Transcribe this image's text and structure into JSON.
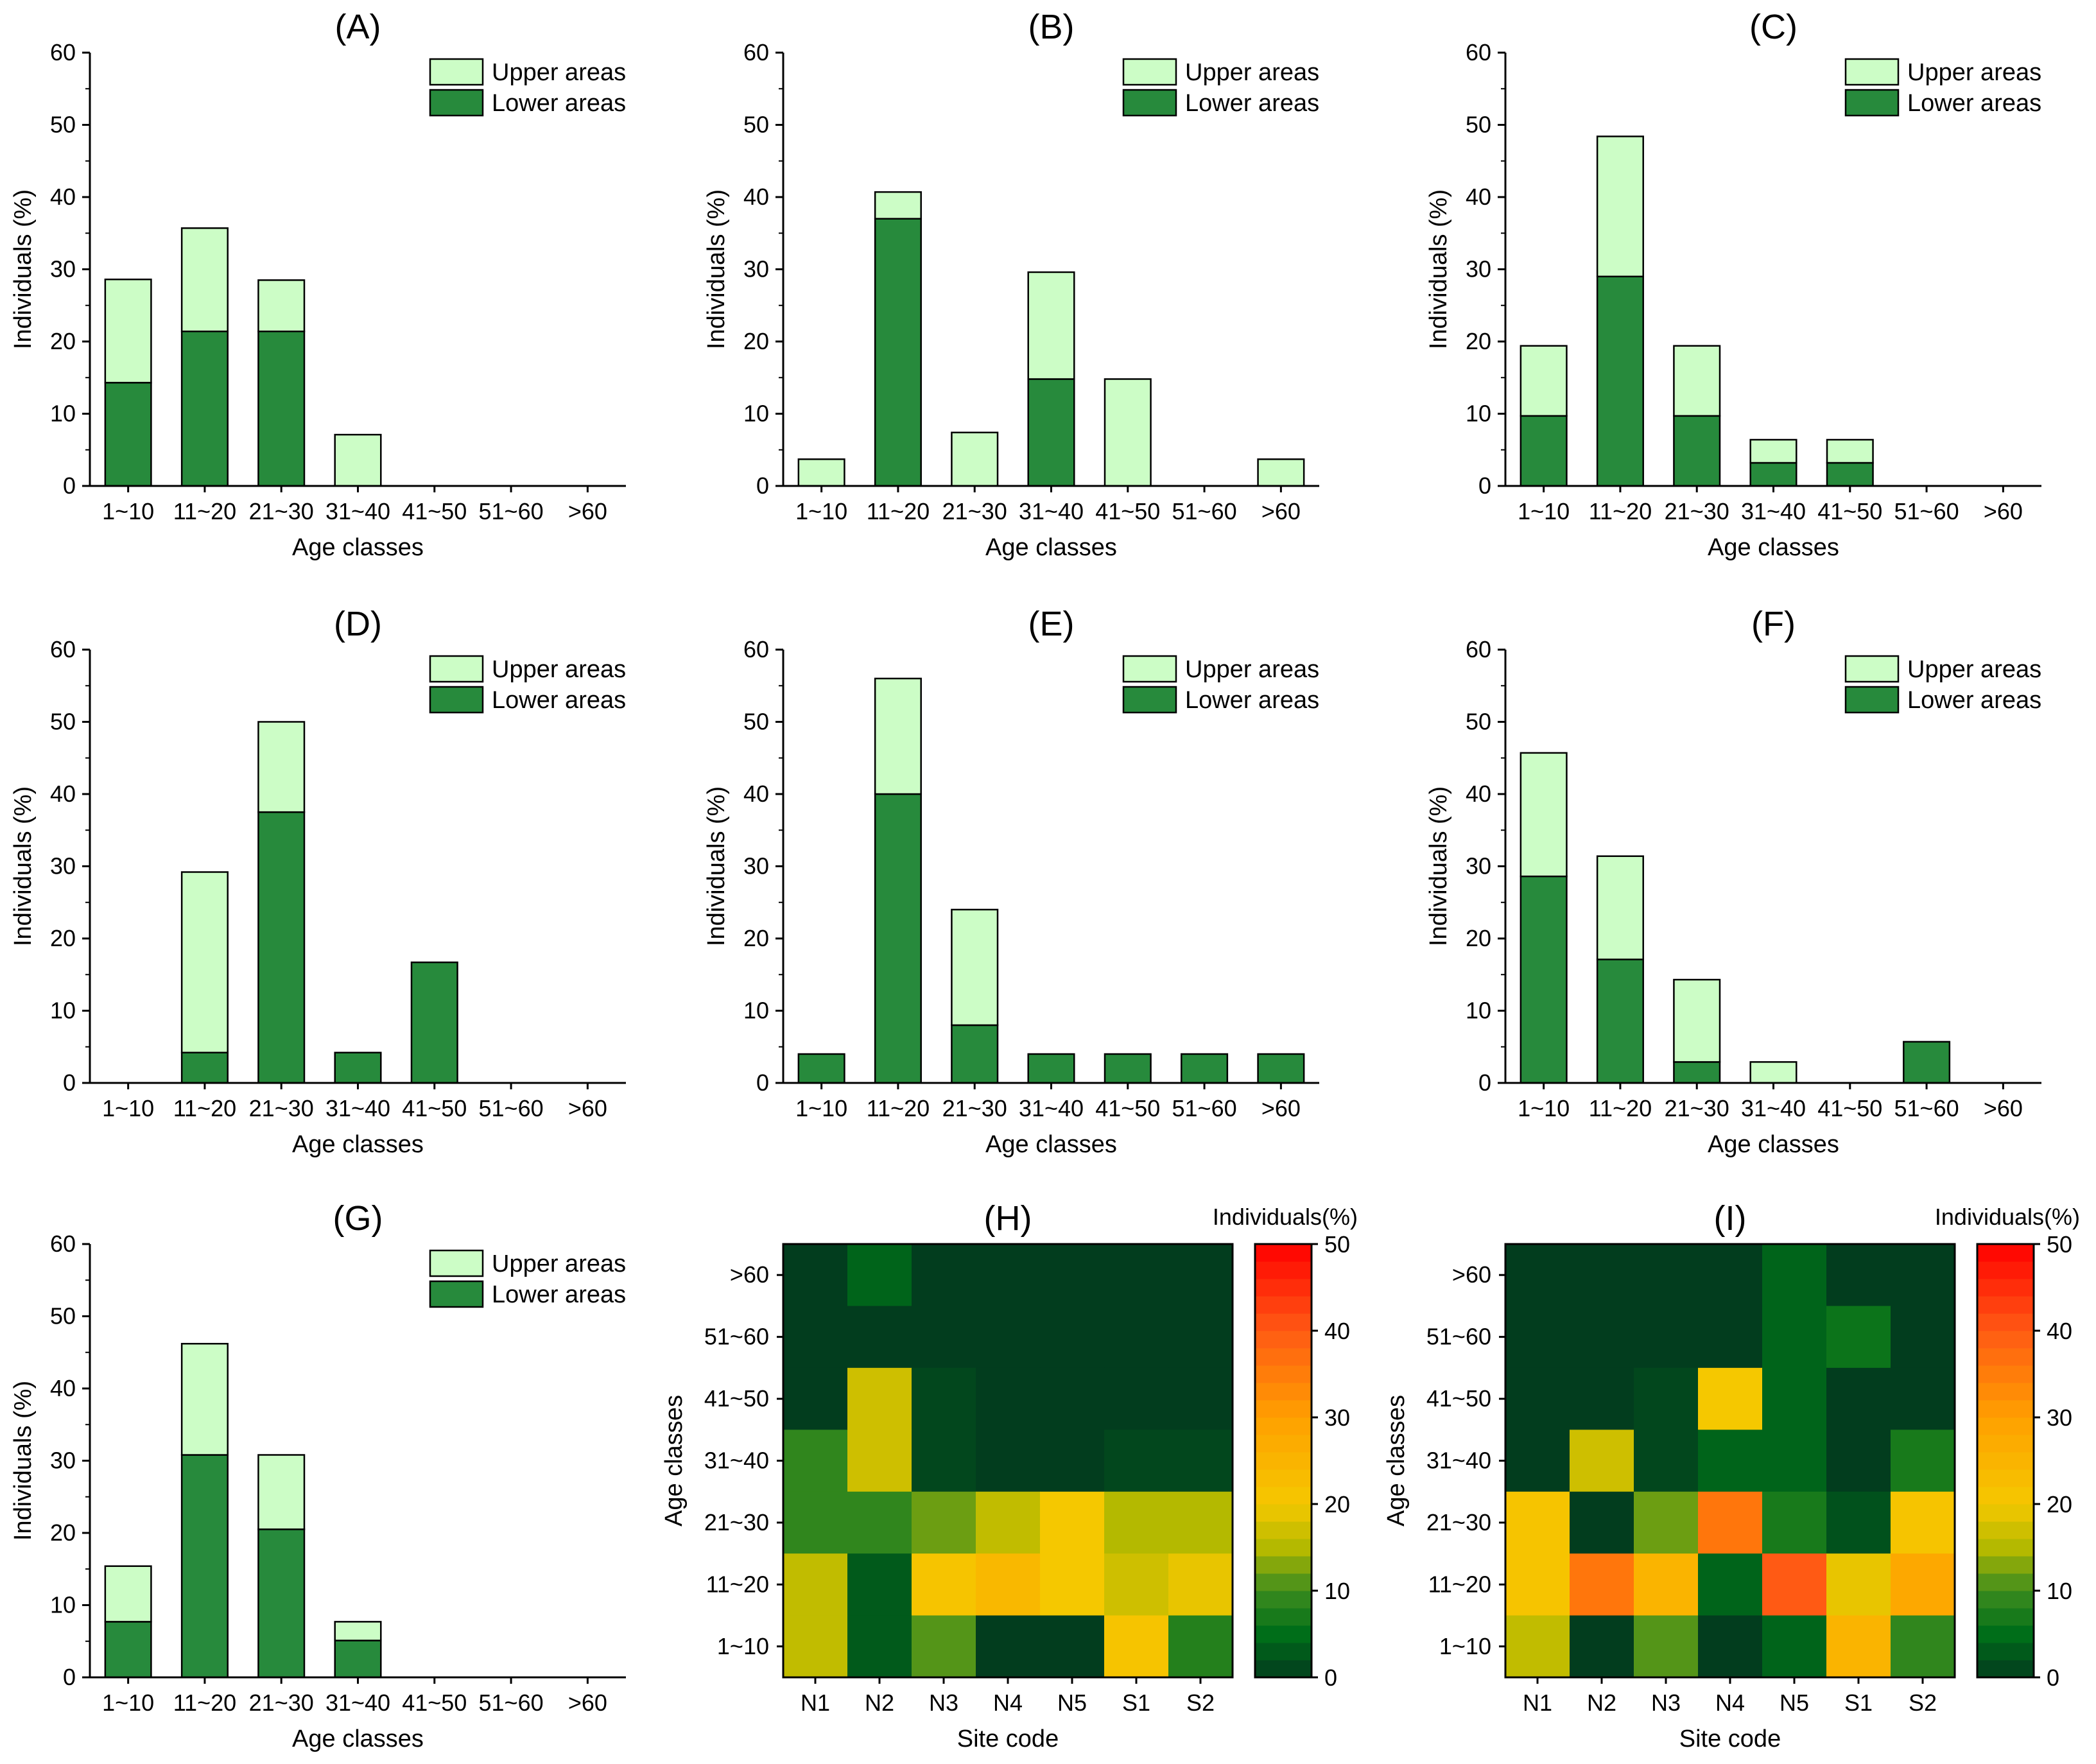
{
  "colors": {
    "upper": "#ccfdc6",
    "lower": "#278a3c",
    "outline": "#000000"
  },
  "bar_panels": {
    "categories": [
      "1~10",
      "11~20",
      "21~30",
      "31~40",
      "41~50",
      "51~60",
      ">60"
    ],
    "xlabel": "Age classes",
    "ylabel": "Individuals (%)",
    "ylim": [
      0,
      60
    ],
    "yticks": [
      "0",
      "10",
      "20",
      "30",
      "40",
      "50",
      "60"
    ],
    "legend": {
      "upper": "Upper areas",
      "lower": "Lower areas"
    }
  },
  "heatmap_panels": {
    "xlabel": "Site code",
    "ylabel": "Age classes",
    "colorbar_label": "Individuals(%)",
    "colorbar_ticks": [
      "0",
      "10",
      "20",
      "30",
      "40",
      "50"
    ]
  },
  "chart_data": [
    {
      "type": "bar",
      "id": "A",
      "title": "(A)",
      "stacked": true,
      "series": [
        {
          "name": "Lower areas",
          "values": [
            14.3,
            21.4,
            21.4,
            0,
            0,
            0,
            0
          ]
        },
        {
          "name": "Upper areas",
          "values": [
            14.3,
            14.3,
            7.1,
            7.1,
            0,
            0,
            0
          ]
        }
      ]
    },
    {
      "type": "bar",
      "id": "B",
      "title": "(B)",
      "stacked": true,
      "series": [
        {
          "name": "Lower areas",
          "values": [
            0,
            37.0,
            0,
            14.8,
            0,
            0,
            0
          ]
        },
        {
          "name": "Upper areas",
          "values": [
            3.7,
            3.7,
            7.4,
            14.8,
            14.8,
            0,
            3.7
          ]
        }
      ]
    },
    {
      "type": "bar",
      "id": "C",
      "title": "(C)",
      "stacked": true,
      "series": [
        {
          "name": "Lower areas",
          "values": [
            9.7,
            29.0,
            9.7,
            3.2,
            3.2,
            0,
            0
          ]
        },
        {
          "name": "Upper areas",
          "values": [
            9.7,
            19.4,
            9.7,
            3.2,
            3.2,
            0,
            0
          ]
        }
      ]
    },
    {
      "type": "bar",
      "id": "D",
      "title": "(D)",
      "stacked": true,
      "series": [
        {
          "name": "Lower areas",
          "values": [
            0,
            4.2,
            37.5,
            4.2,
            16.7,
            0,
            0
          ]
        },
        {
          "name": "Upper areas",
          "values": [
            0,
            25.0,
            12.5,
            0,
            0,
            0,
            0
          ]
        }
      ]
    },
    {
      "type": "bar",
      "id": "E",
      "title": "(E)",
      "stacked": true,
      "series": [
        {
          "name": "Lower areas",
          "values": [
            4.0,
            40.0,
            8.0,
            4.0,
            4.0,
            4.0,
            4.0
          ]
        },
        {
          "name": "Upper areas",
          "values": [
            0,
            16.0,
            16.0,
            0,
            0,
            0,
            0
          ]
        }
      ]
    },
    {
      "type": "bar",
      "id": "F",
      "title": "(F)",
      "stacked": true,
      "series": [
        {
          "name": "Lower areas",
          "values": [
            28.6,
            17.1,
            2.9,
            0,
            0,
            5.7,
            0
          ]
        },
        {
          "name": "Upper areas",
          "values": [
            17.1,
            14.3,
            11.4,
            2.9,
            0,
            0,
            0
          ]
        }
      ]
    },
    {
      "type": "bar",
      "id": "G",
      "title": "(G)",
      "stacked": true,
      "series": [
        {
          "name": "Lower areas",
          "values": [
            7.7,
            30.8,
            20.5,
            5.1,
            0,
            0,
            0
          ]
        },
        {
          "name": "Upper areas",
          "values": [
            7.7,
            15.4,
            10.3,
            2.6,
            0,
            0,
            0
          ]
        }
      ]
    },
    {
      "type": "heatmap",
      "id": "H",
      "title": "(H)",
      "x": [
        "N1",
        "N2",
        "N3",
        "N4",
        "N5",
        "S1",
        "S2"
      ],
      "y": [
        ">60",
        "51~60",
        "41~50",
        "31~40",
        "21~30",
        "11~20",
        "1~10"
      ],
      "zlim": [
        0,
        50
      ],
      "values": [
        [
          0,
          4,
          0,
          0,
          0,
          0,
          0
        ],
        [
          0,
          0,
          0,
          0,
          0,
          0,
          0
        ],
        [
          0,
          17,
          1,
          0,
          0,
          0,
          0
        ],
        [
          9,
          17,
          1,
          0,
          0,
          1,
          1
        ],
        [
          9,
          9,
          12,
          16,
          20,
          15,
          15
        ],
        [
          16,
          3,
          21,
          24,
          20,
          17,
          19
        ],
        [
          16,
          3,
          11,
          0,
          0,
          21,
          8
        ]
      ]
    },
    {
      "type": "heatmap",
      "id": "I",
      "title": "(I)",
      "x": [
        "N1",
        "N2",
        "N3",
        "N4",
        "N5",
        "S1",
        "S2"
      ],
      "y": [
        ">60",
        "51~60",
        "41~50",
        "31~40",
        "21~30",
        "11~20",
        "1~10"
      ],
      "zlim": [
        0,
        50
      ],
      "values": [
        [
          0,
          0,
          0,
          0,
          4,
          0,
          0
        ],
        [
          0,
          0,
          0,
          0,
          4,
          6,
          0
        ],
        [
          0,
          0,
          1,
          20,
          4,
          0,
          0
        ],
        [
          0,
          17,
          1,
          4,
          4,
          0,
          7
        ],
        [
          21,
          0,
          12,
          36,
          7,
          2,
          21
        ],
        [
          21,
          36,
          25,
          4,
          40,
          19,
          28
        ],
        [
          16,
          0,
          11,
          0,
          4,
          25,
          9
        ]
      ]
    }
  ]
}
